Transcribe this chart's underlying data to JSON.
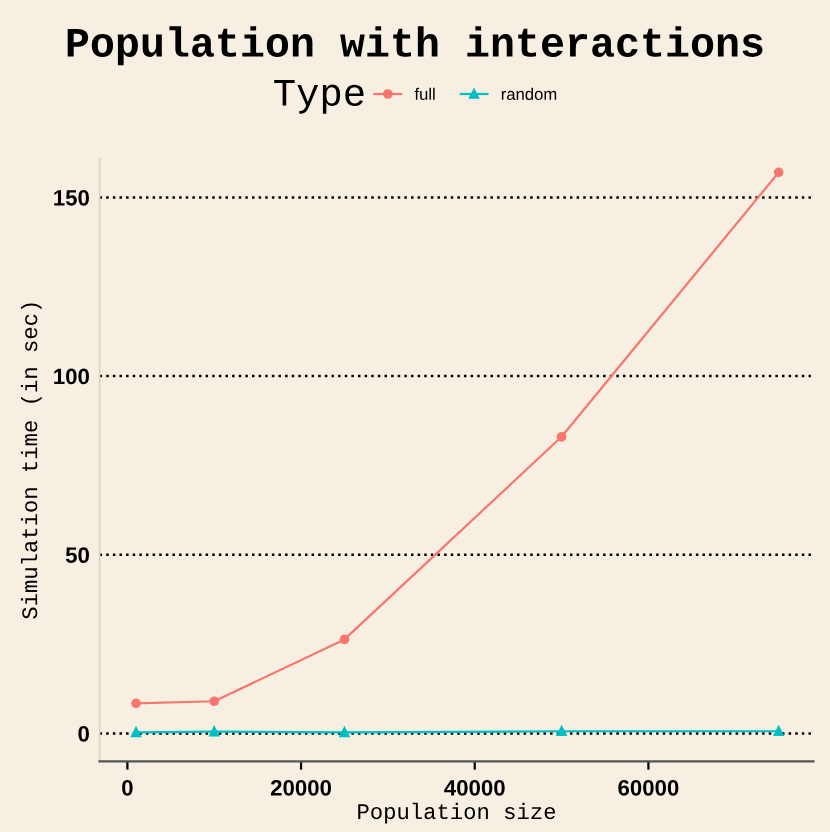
{
  "chart_data": {
    "type": "line",
    "title": "Population with interactions",
    "xlabel": "Population size",
    "ylabel": "Simulation time (in sec)",
    "legend_title": "Type",
    "x": [
      1000,
      10000,
      25000,
      50000,
      75000
    ],
    "series": [
      {
        "name": "full",
        "color": "#f8766d",
        "marker": "circle",
        "values": [
          8.4,
          9,
          26.3,
          83,
          157
        ]
      },
      {
        "name": "random",
        "color": "#00bfc4",
        "marker": "triangle",
        "values": [
          0.3,
          0.5,
          0.3,
          0.6,
          0.6
        ]
      }
    ],
    "xlim": [
      -3200,
      79000
    ],
    "ylim": [
      -7.8,
      161
    ],
    "xticks": [
      0,
      20000,
      40000,
      60000
    ],
    "yticks": [
      0,
      50,
      100,
      150
    ],
    "grid": "y",
    "legend": "top",
    "line_style": "solid"
  }
}
